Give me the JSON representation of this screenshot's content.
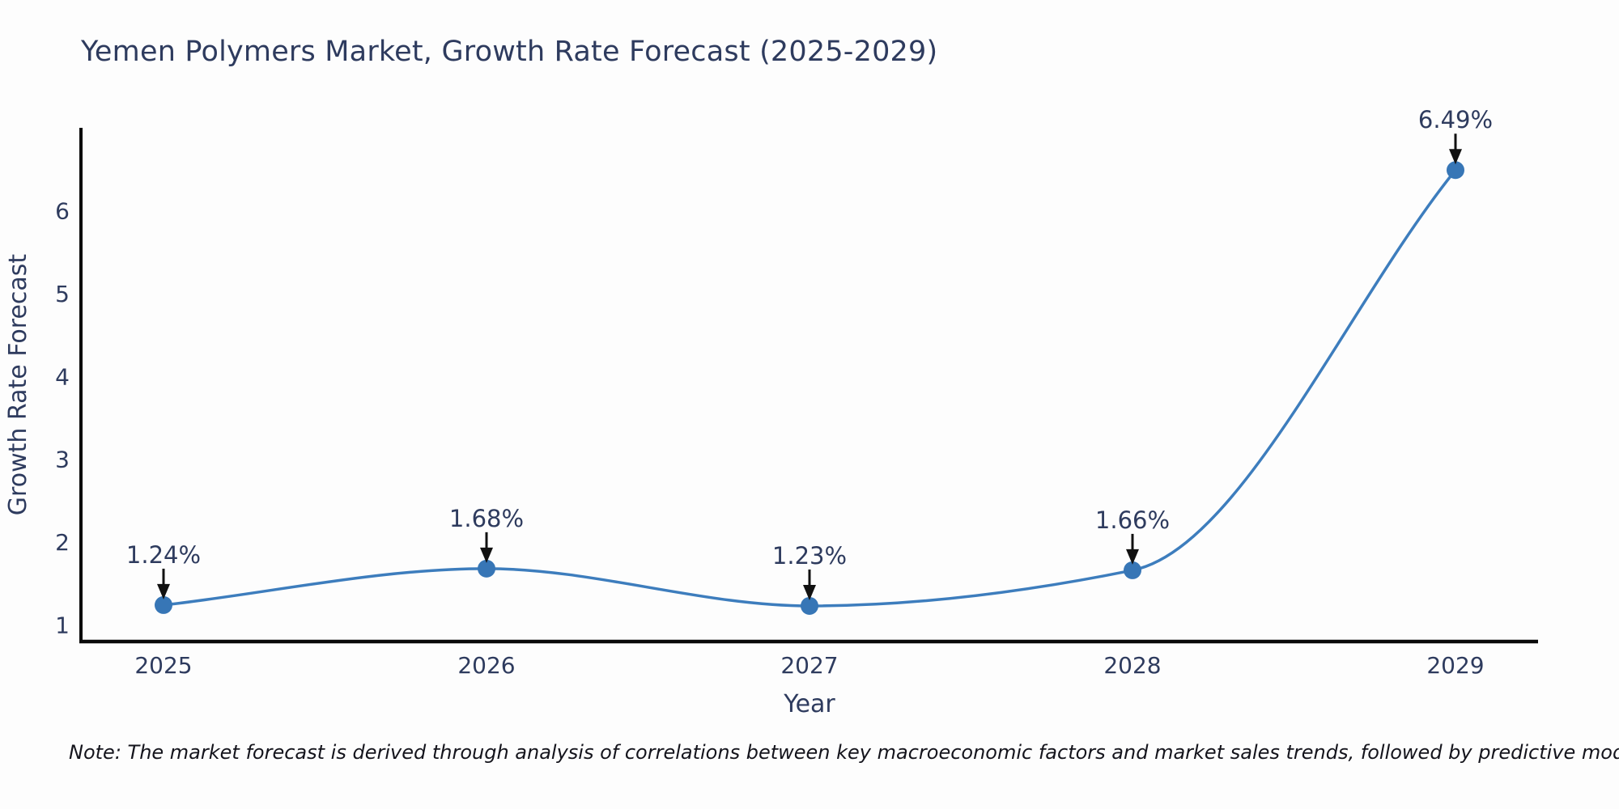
{
  "chart_data": {
    "type": "line",
    "title": "Yemen Polymers Market, Growth Rate Forecast (2025-2029)",
    "categories": [
      "2025",
      "2026",
      "2027",
      "2028",
      "2029"
    ],
    "values": [
      1.24,
      1.68,
      1.23,
      1.66,
      6.49
    ],
    "point_labels": [
      "1.24%",
      "1.68%",
      "1.23%",
      "1.66%",
      "6.49%"
    ],
    "xlabel": "Year",
    "ylabel": "Growth Rate Forecast",
    "yticks": [
      1,
      2,
      3,
      4,
      5,
      6
    ],
    "ylim": [
      0.8,
      7.0
    ],
    "grid": false,
    "legend": "none",
    "annotation_style": "black-down-arrow",
    "colors": {
      "line": "#3d7dbd",
      "marker": "#3776b6",
      "label_text": "#2e3b5e",
      "tick_text": "#2e3b5e",
      "axis_spine": "#0a0a0a",
      "arrow": "#111111",
      "note_text": "#14141c",
      "background": "#fdfdfd"
    }
  },
  "footer": {
    "note": "Note: The market forecast is derived through analysis of correlations between key macroeconomic factors and market sales trends, followed by predictive modeling to project future sales."
  }
}
